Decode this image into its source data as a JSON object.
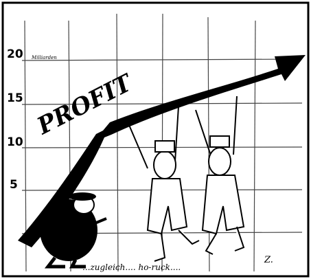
{
  "cartoon": {
    "word": "PROFIT",
    "unit": "Milliarden",
    "scale_labels": [
      20,
      15,
      10,
      5
    ],
    "caption": "...zugleich.... ho-ruck....",
    "signature": "Z."
  }
}
